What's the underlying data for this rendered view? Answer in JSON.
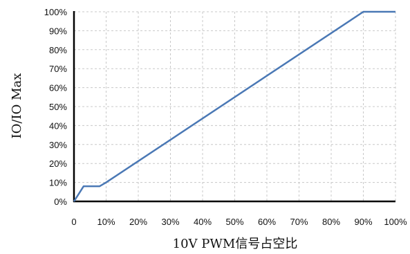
{
  "chart_data": {
    "type": "line",
    "xlabel": "10V PWM信号占空比",
    "ylabel": "IO/IO Max",
    "xlim": [
      0,
      100
    ],
    "ylim": [
      0,
      100
    ],
    "grid": true,
    "x_ticks": [
      0,
      10,
      20,
      30,
      40,
      50,
      60,
      70,
      80,
      90,
      100
    ],
    "x_tick_labels": [
      "0",
      "10%",
      "20%",
      "30%",
      "40%",
      "50%",
      "60%",
      "70%",
      "80%",
      "90%",
      "100%"
    ],
    "y_ticks": [
      0,
      10,
      20,
      30,
      40,
      50,
      60,
      70,
      80,
      90,
      100
    ],
    "y_tick_labels": [
      "0%",
      "10%",
      "20%",
      "30%",
      "40%",
      "50%",
      "60%",
      "70%",
      "80%",
      "90%",
      "100%"
    ],
    "series": [
      {
        "color": "#4a78b5",
        "x": [
          0,
          3,
          8,
          10,
          90,
          100
        ],
        "y": [
          0,
          8,
          8,
          10,
          100,
          100
        ]
      }
    ]
  }
}
